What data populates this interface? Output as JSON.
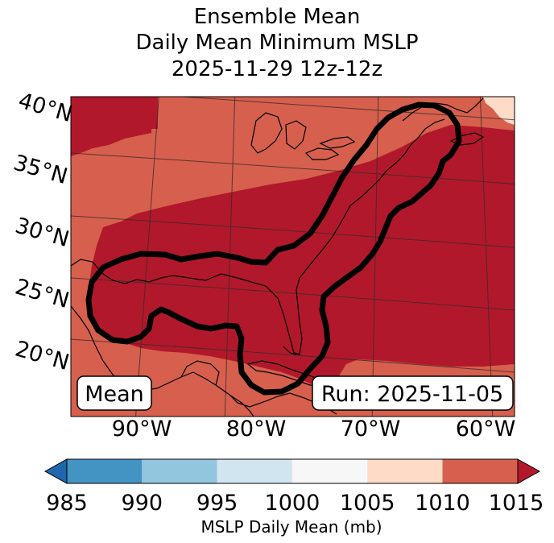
{
  "title": {
    "line1": "Ensemble Mean",
    "line2": "Daily Mean Minimum MSLP",
    "line3": "2025-11-29 12z-12z"
  },
  "lat_labels": [
    "40°N",
    "35°N",
    "30°N",
    "25°N",
    "20°N"
  ],
  "lon_labels": [
    "90°W",
    "80°W",
    "70°W",
    "60°W"
  ],
  "annotations": {
    "left_box": "Mean",
    "right_box": "Run: 2025-11-05"
  },
  "colorbar": {
    "ticks": [
      "985",
      "990",
      "995",
      "1000",
      "1005",
      "1010",
      "1015"
    ],
    "label": "MSLP Daily Mean (mb)",
    "colors": [
      "#4393c3",
      "#92c5de",
      "#d1e5f0",
      "#f7f7f7",
      "#fddbc7",
      "#d6604d"
    ],
    "under_color": "#2166ac",
    "over_color": "#b2182b"
  },
  "field_colors": {
    "band_1010": "#d6604d",
    "band_1015": "#b2182b",
    "band_1005": "#fddbc7",
    "contour": "#000000"
  }
}
